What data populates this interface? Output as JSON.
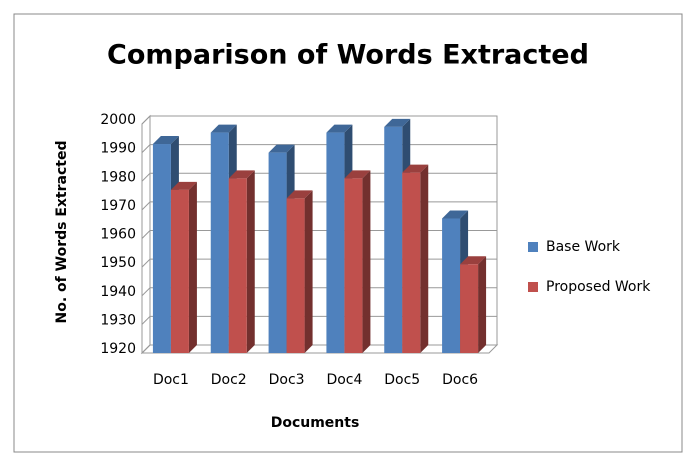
{
  "chart_data": {
    "type": "bar3d",
    "title": "Comparison of Words Extracted",
    "x_label": "Documents",
    "y_label": "No. of Words Extracted",
    "categories": [
      "Doc1",
      "Doc2",
      "Doc3",
      "Doc4",
      "Doc5",
      "Doc6"
    ],
    "series": [
      {
        "name": "Base Work",
        "color": "#4f81bd",
        "values": [
          1993,
          1997,
          1990,
          1997,
          1999,
          1967
        ]
      },
      {
        "name": "Proposed Work",
        "color": "#c0504d",
        "values": [
          1977,
          1981,
          1974,
          1981,
          1983,
          1951
        ]
      }
    ],
    "ylim": [
      1920,
      2000
    ],
    "yticks": [
      1920,
      1930,
      1940,
      1950,
      1960,
      1970,
      1980,
      1990,
      2000
    ],
    "grid": true,
    "legend": "right"
  }
}
